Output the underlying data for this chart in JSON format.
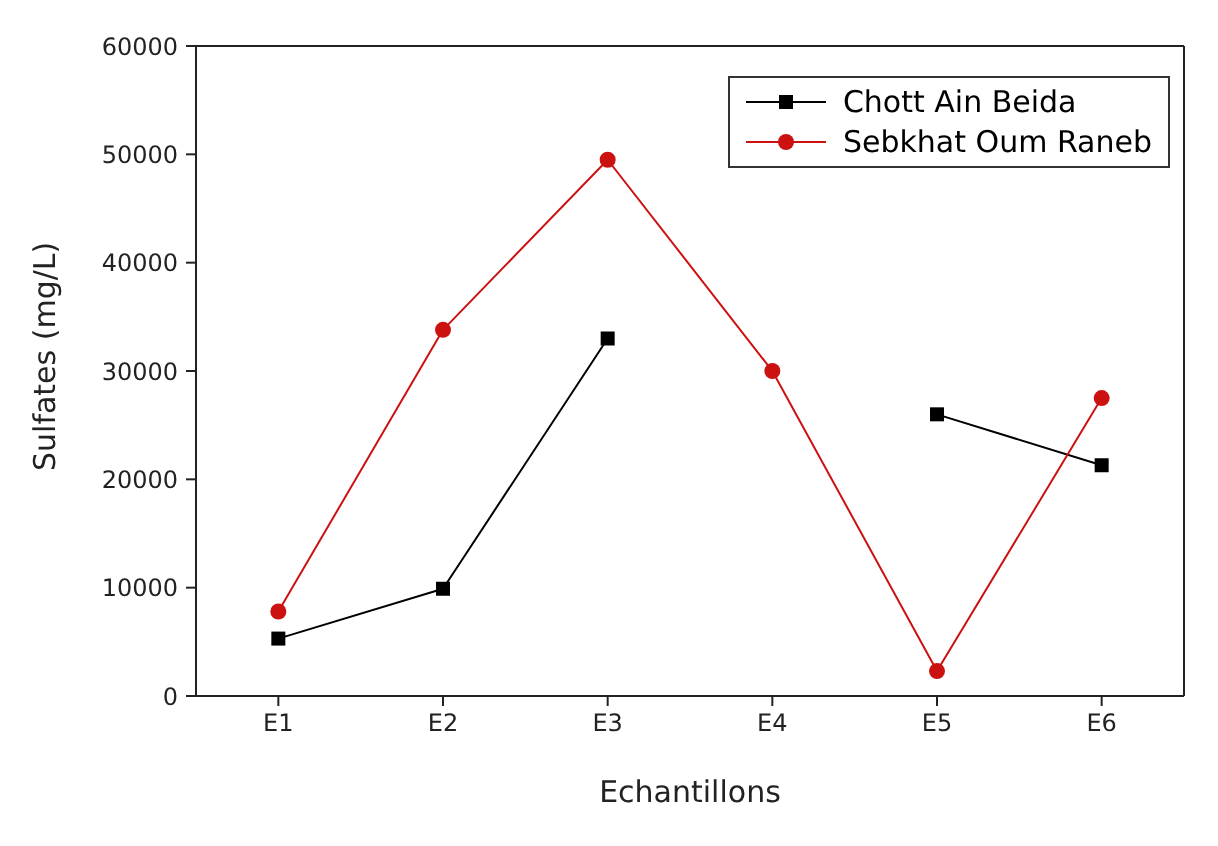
{
  "chart_data": {
    "type": "line",
    "xlabel": "Echantillons",
    "ylabel": "Sulfates (mg/L)",
    "categories": [
      "E1",
      "E2",
      "E3",
      "E4",
      "E5",
      "E6"
    ],
    "ylim": [
      0,
      60000
    ],
    "yticks": [
      0,
      10000,
      20000,
      30000,
      40000,
      50000,
      60000
    ],
    "legend": "top right",
    "grid": false,
    "series": [
      {
        "name": "Chott Ain Beida",
        "color": "#000000",
        "marker": "square",
        "values": [
          5300,
          9900,
          33000,
          null,
          26000,
          21300
        ]
      },
      {
        "name": "Sebkhat Oum Raneb",
        "color": "#cc1111",
        "marker": "circle",
        "values": [
          7800,
          33800,
          49500,
          30000,
          2300,
          27500
        ]
      }
    ]
  }
}
